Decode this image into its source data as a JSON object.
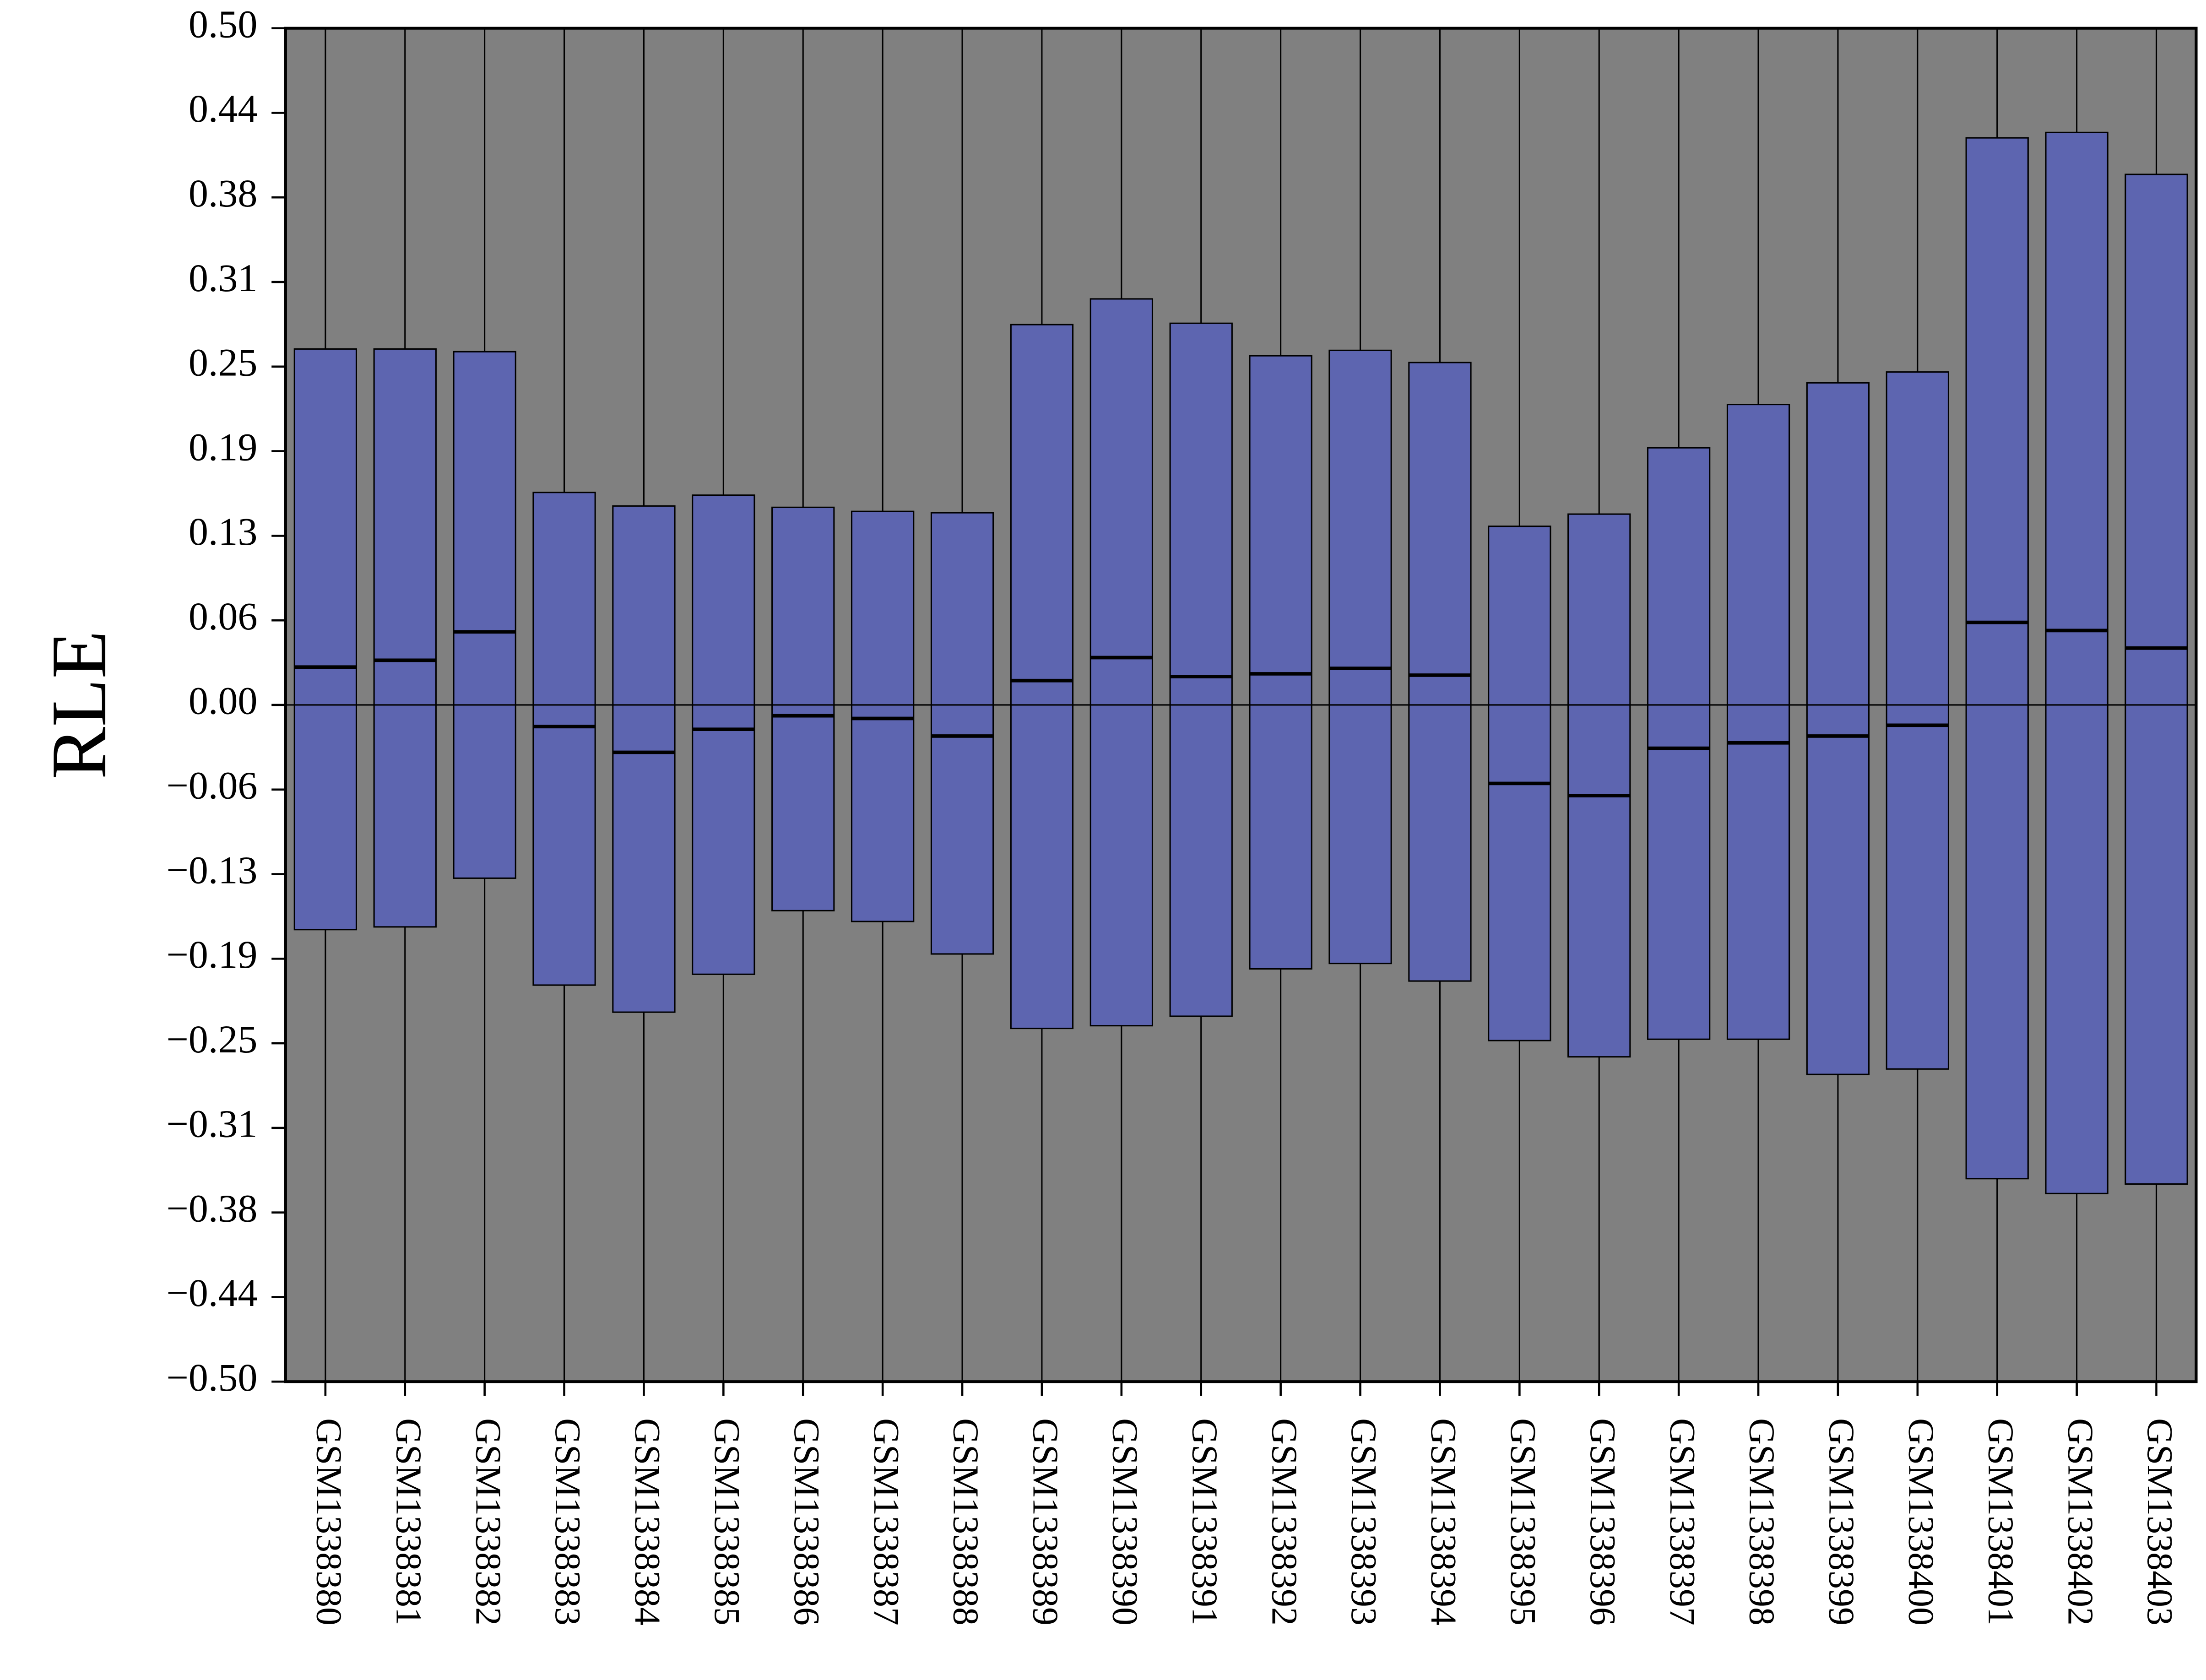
{
  "chart_data": {
    "type": "box",
    "y_label": "RLE",
    "categories": [
      "GSM1338380",
      "GSM1338381",
      "GSM1338382",
      "GSM1338383",
      "GSM1338384",
      "GSM1338385",
      "GSM1338386",
      "GSM1338387",
      "GSM1338388",
      "GSM1338389",
      "GSM1338390",
      "GSM1338391",
      "GSM1338392",
      "GSM1338393",
      "GSM1338394",
      "GSM1338395",
      "GSM1338396",
      "GSM1338397",
      "GSM1338398",
      "GSM1338399",
      "GSM1338400",
      "GSM1338401",
      "GSM1338402",
      "GSM1338403"
    ],
    "q3": [
      0.263,
      0.263,
      0.261,
      0.157,
      0.147,
      0.155,
      0.146,
      0.143,
      0.142,
      0.281,
      0.3,
      0.282,
      0.258,
      0.262,
      0.253,
      0.132,
      0.141,
      0.19,
      0.222,
      0.238,
      0.246,
      0.419,
      0.423,
      0.392
    ],
    "median": [
      0.028,
      0.033,
      0.054,
      -0.016,
      -0.035,
      -0.018,
      -0.008,
      -0.01,
      -0.023,
      0.018,
      0.035,
      0.021,
      0.023,
      0.027,
      0.022,
      -0.058,
      -0.067,
      -0.032,
      -0.028,
      -0.023,
      -0.015,
      0.061,
      0.055,
      0.042
    ],
    "q1": [
      -0.166,
      -0.164,
      -0.128,
      -0.207,
      -0.227,
      -0.199,
      -0.152,
      -0.16,
      -0.184,
      -0.239,
      -0.237,
      -0.23,
      -0.195,
      -0.191,
      -0.204,
      -0.248,
      -0.26,
      -0.247,
      -0.247,
      -0.273,
      -0.269,
      -0.35,
      -0.361,
      -0.354
    ],
    "color": "#5d65b0",
    "background": "#808080",
    "ylim": [
      -0.5,
      0.5
    ],
    "yticks": [
      {
        "value": -0.5,
        "label": "−0.50"
      },
      {
        "value": -0.4375,
        "label": "−0.44"
      },
      {
        "value": -0.375,
        "label": "−0.38"
      },
      {
        "value": -0.3125,
        "label": "−0.31"
      },
      {
        "value": -0.25,
        "label": "−0.25"
      },
      {
        "value": -0.1875,
        "label": "−0.19"
      },
      {
        "value": -0.125,
        "label": "−0.13"
      },
      {
        "value": -0.0625,
        "label": "−0.06"
      },
      {
        "value": 0,
        "label": "0.00"
      },
      {
        "value": 0.0625,
        "label": "0.06"
      },
      {
        "value": 0.125,
        "label": "0.13"
      },
      {
        "value": 0.1875,
        "label": "0.19"
      },
      {
        "value": 0.25,
        "label": "0.25"
      },
      {
        "value": 0.3125,
        "label": "0.31"
      },
      {
        "value": 0.375,
        "label": "0.38"
      },
      {
        "value": 0.4375,
        "label": "0.44"
      },
      {
        "value": 0.5,
        "label": "0.50"
      }
    ]
  }
}
